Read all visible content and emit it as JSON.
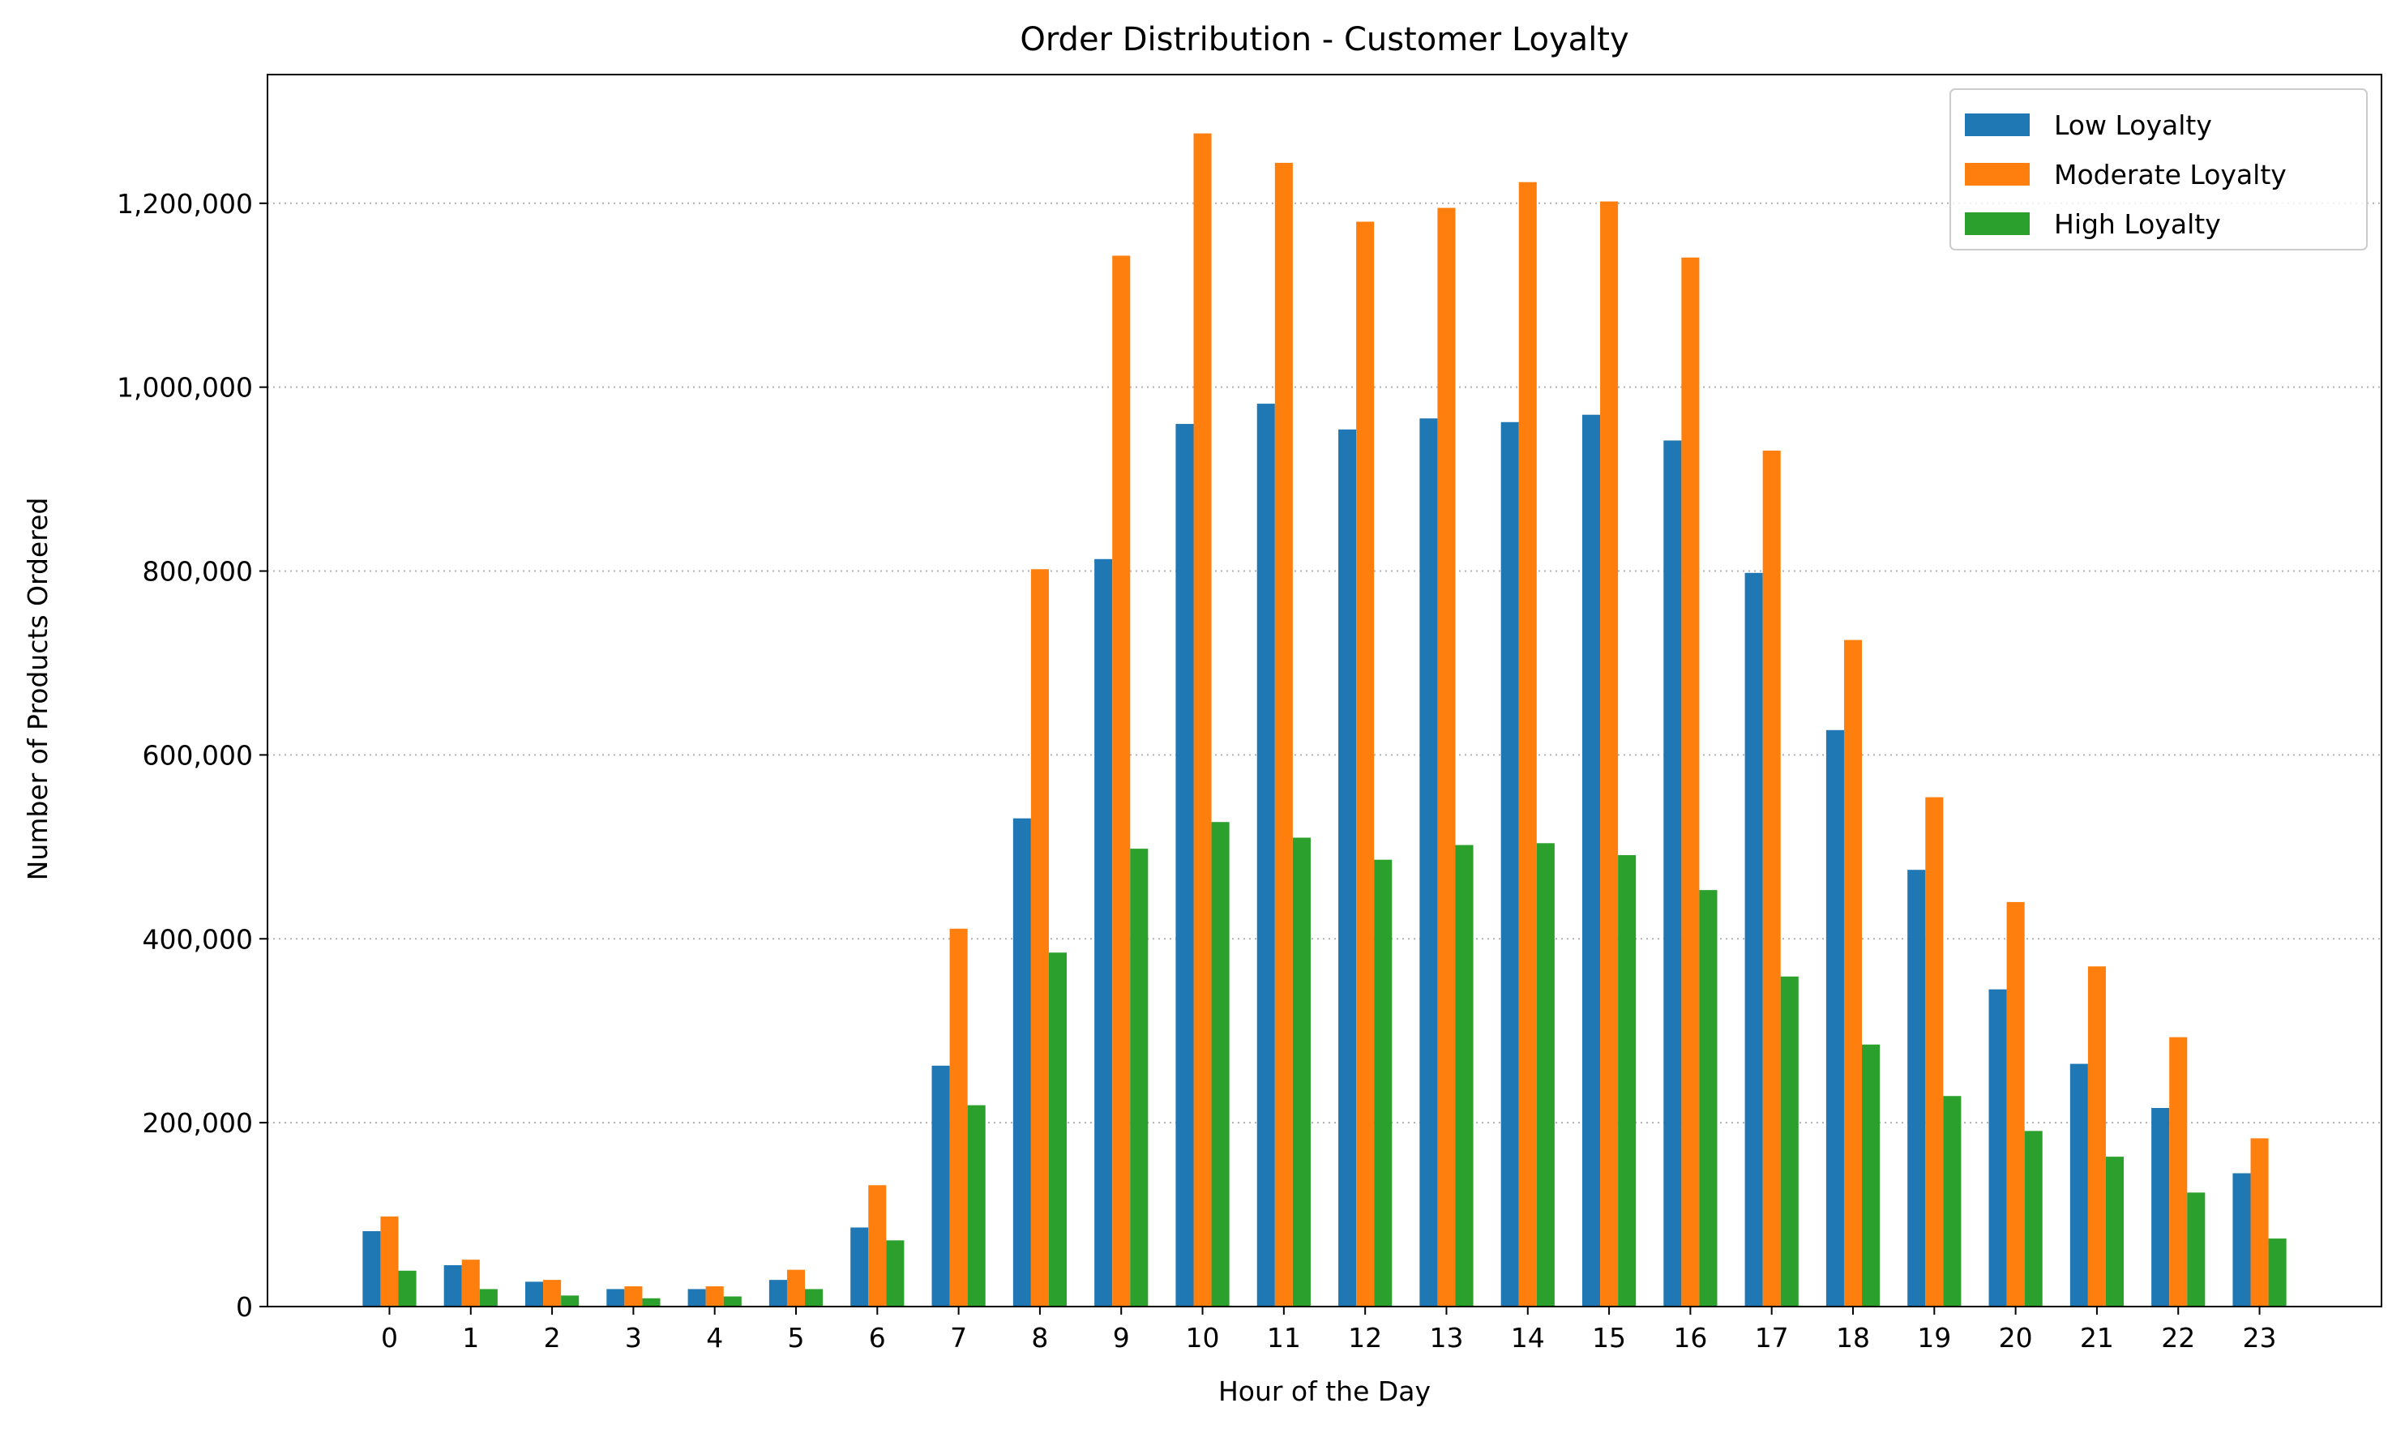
{
  "chart_data": {
    "type": "bar",
    "title": "Order Distribution - Customer Loyalty",
    "xlabel": "Hour of the Day",
    "ylabel": "Number of Products Ordered",
    "categories": [
      "0",
      "1",
      "2",
      "3",
      "4",
      "5",
      "6",
      "7",
      "8",
      "9",
      "10",
      "11",
      "12",
      "13",
      "14",
      "15",
      "16",
      "17",
      "18",
      "19",
      "20",
      "21",
      "22",
      "23"
    ],
    "series": [
      {
        "name": "Low Loyalty",
        "color": "#1f77b4",
        "values": [
          82000,
          45000,
          27000,
          19000,
          19000,
          29000,
          86000,
          262000,
          531000,
          813000,
          960000,
          982000,
          954000,
          966000,
          962000,
          970000,
          942000,
          798000,
          627000,
          475000,
          345000,
          264000,
          216000,
          145000
        ]
      },
      {
        "name": "Moderate Loyalty",
        "color": "#ff7f0e",
        "values": [
          98000,
          51000,
          29000,
          22000,
          22000,
          40000,
          132000,
          411000,
          802000,
          1143000,
          1276000,
          1244000,
          1180000,
          1195000,
          1223000,
          1202000,
          1141000,
          931000,
          725000,
          554000,
          440000,
          370000,
          293000,
          183000
        ]
      },
      {
        "name": "High Loyalty",
        "color": "#2ca02c",
        "values": [
          39000,
          19000,
          12000,
          9000,
          11000,
          19000,
          72000,
          219000,
          385000,
          498000,
          527000,
          510000,
          486000,
          502000,
          504000,
          491000,
          453000,
          359000,
          285000,
          229000,
          191000,
          163000,
          124000,
          74000
        ]
      }
    ],
    "ylim": [
      0,
      1340000
    ],
    "yticks": [
      {
        "value": 0,
        "label": "0"
      },
      {
        "value": 200000,
        "label": "200,000"
      },
      {
        "value": 400000,
        "label": "400,000"
      },
      {
        "value": 600000,
        "label": "600,000"
      },
      {
        "value": 800000,
        "label": "800,000"
      },
      {
        "value": 1000000,
        "label": "1,000,000"
      },
      {
        "value": 1200000,
        "label": "1,200,000"
      }
    ],
    "grid": "y-dotted",
    "legend_position": "top-right"
  }
}
